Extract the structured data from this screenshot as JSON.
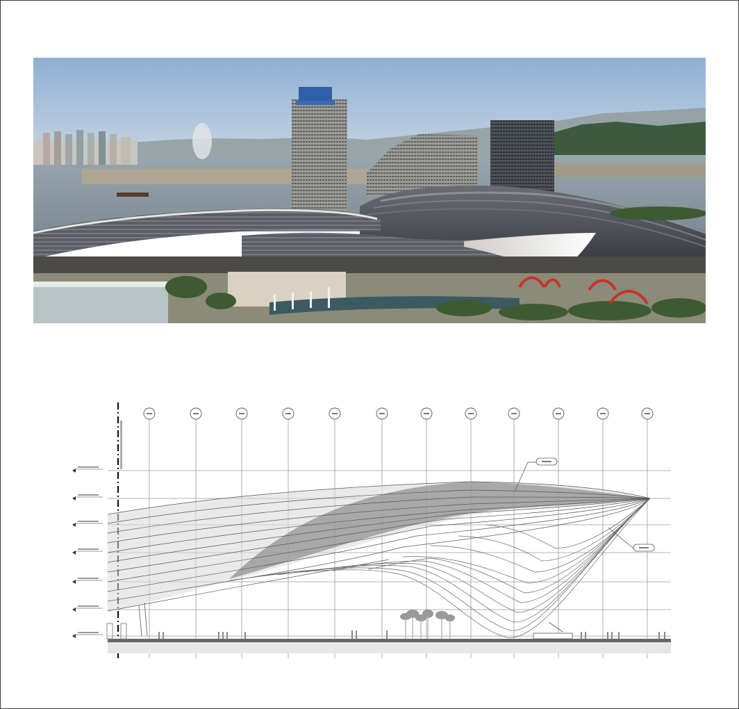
{
  "figure": {
    "photo_subject": "aerial-photo-of-waterfront-convention-center",
    "drawing_subject": "elevation-section-drawing-of-roof",
    "colors": {
      "sky": "#9fbbd8",
      "water": "#8a9aa6",
      "roof_dark": "#4a4d52",
      "roof_white": "#f2f0ec",
      "sculpture_red": "#c8322a",
      "greenery": "#3e5a32"
    }
  },
  "drawing": {
    "grid_tag_count": 12,
    "level_tag_count": 7,
    "callout_tag_count": 2
  }
}
